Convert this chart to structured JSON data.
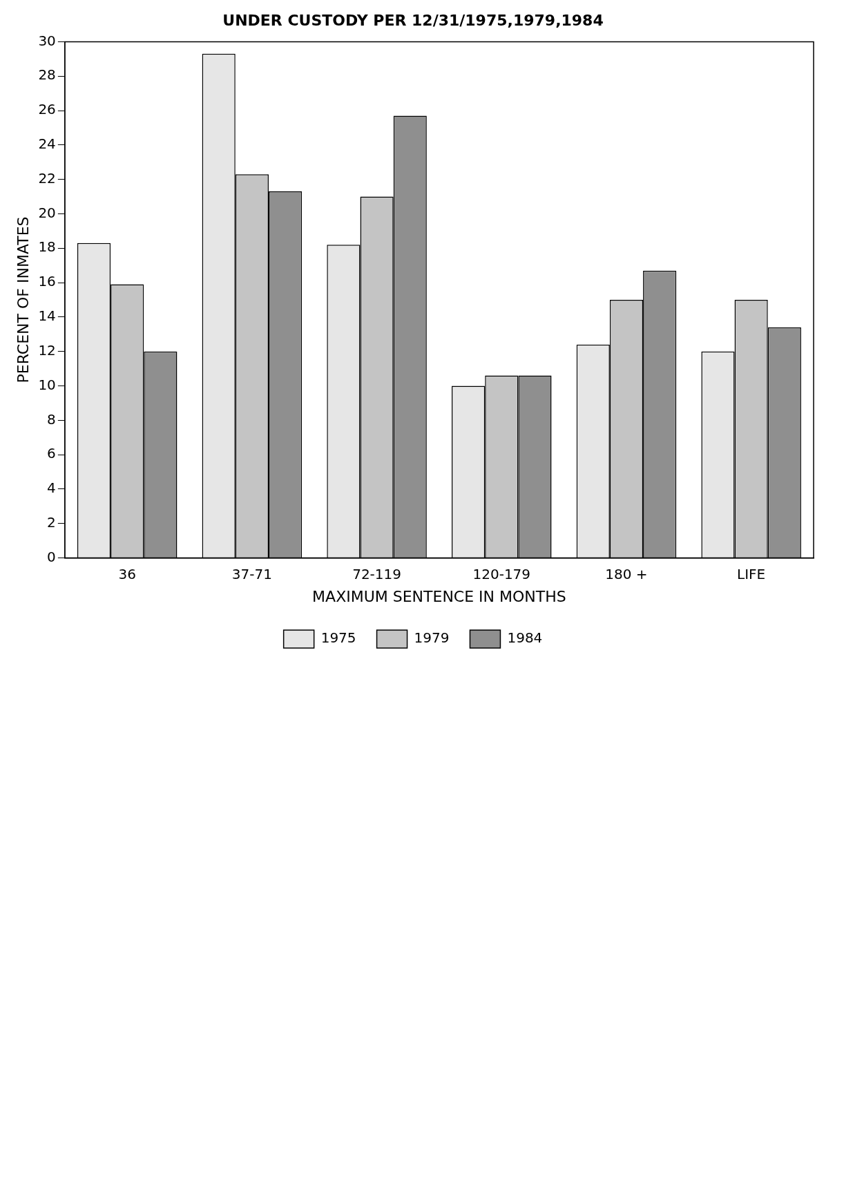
{
  "chart_data": {
    "type": "bar",
    "title": "UNDER CUSTODY PER 12/31/1975,1979,1984",
    "xlabel": "MAXIMUM SENTENCE IN MONTHS",
    "ylabel": "PERCENT OF INMATES",
    "categories": [
      "36",
      "37-71",
      "72-119",
      "120-179",
      "180 +",
      "LIFE"
    ],
    "series": [
      {
        "name": "1975",
        "color": "#e6e6e6",
        "values": [
          18.3,
          29.3,
          18.2,
          10.0,
          12.4,
          12.0
        ]
      },
      {
        "name": "1979",
        "color": "#c4c4c4",
        "values": [
          15.9,
          22.3,
          21.0,
          10.6,
          15.0,
          15.0
        ]
      },
      {
        "name": "1984",
        "color": "#8f8f8f",
        "values": [
          12.0,
          21.3,
          25.7,
          10.6,
          16.7,
          13.4
        ]
      }
    ],
    "ylim": [
      0,
      30
    ],
    "yticks": [
      0,
      2,
      4,
      6,
      8,
      10,
      12,
      14,
      16,
      18,
      20,
      22,
      24,
      26,
      28,
      30
    ],
    "grid": false,
    "legend": "bottom"
  }
}
